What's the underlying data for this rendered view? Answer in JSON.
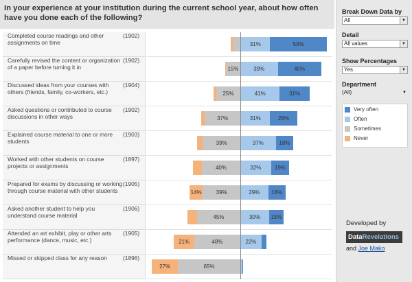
{
  "header": {
    "title": "In your experience at your institution during the current school year, about how often have you done each of the following?"
  },
  "panel": {
    "breakdown": {
      "label": "Break Down Data by",
      "value": "All"
    },
    "detail": {
      "label": "Detail",
      "value": "All values"
    },
    "show_pct": {
      "label": "Show Percentages",
      "value": "Yes"
    },
    "department": {
      "label": "Department",
      "value": "(All)"
    },
    "legend": [
      {
        "label": "Very often",
        "color": "#4f87c7"
      },
      {
        "label": "Often",
        "color": "#a6c8ea"
      },
      {
        "label": "Sometimes",
        "color": "#c6c6c6"
      },
      {
        "label": "Never",
        "color": "#f5b27a"
      }
    ],
    "credit": {
      "line1": "Developed by",
      "logo_a": "Data",
      "logo_b": "Revelations",
      "and": "and ",
      "link": "Joe Mako"
    }
  },
  "chart_data": {
    "type": "bar",
    "title": "In your experience at your institution during the current school year, about how often have you done each of the following?",
    "diverging": true,
    "series": [
      {
        "name": "Very often",
        "values": [
          59,
          45,
          31,
          28,
          18,
          19,
          18,
          15,
          5,
          1
        ]
      },
      {
        "name": "Often",
        "values": [
          31,
          39,
          41,
          31,
          37,
          32,
          29,
          30,
          22,
          2
        ]
      },
      {
        "name": "Sometimes",
        "values": [
          8,
          15,
          25,
          37,
          39,
          40,
          39,
          45,
          48,
          65
        ]
      },
      {
        "name": "Never",
        "values": [
          2,
          1,
          3,
          4,
          6,
          9,
          14,
          10,
          21,
          27
        ]
      }
    ],
    "categories": [
      {
        "label": "Completed course readings and other assignments on time",
        "n": "(1902)"
      },
      {
        "label": "Carefully revised the content or organization of a paper before turning it in",
        "n": "(1902)"
      },
      {
        "label": "Discussed ideas from your courses with others (friends, family, co-workers, etc.)",
        "n": "(1904)"
      },
      {
        "label": "Asked questions or contributed to course discussions in other ways",
        "n": "(1902)"
      },
      {
        "label": "Explained course material to one or more students",
        "n": "(1903)"
      },
      {
        "label": "Worked with other students on course projects or assignments",
        "n": "(1897)"
      },
      {
        "label": "Prepared for exams by discussing or working through course material with other students",
        "n": "(1905)"
      },
      {
        "label": "Asked another student to help you understand course material",
        "n": "(1906)"
      },
      {
        "label": "Attended an art exhibit, play or other arts performance (dance, music, etc.)",
        "n": "(1905)"
      },
      {
        "label": "Missed or skipped class for any reason",
        "n": "(1896)"
      }
    ],
    "labels": [
      [
        "59%",
        "31%",
        "",
        ""
      ],
      [
        "45%",
        "39%",
        "15%",
        ""
      ],
      [
        "31%",
        "41%",
        "25%",
        ""
      ],
      [
        "28%",
        "31%",
        "37%",
        ""
      ],
      [
        "18%",
        "37%",
        "39%",
        ""
      ],
      [
        "19%",
        "32%",
        "40%",
        ""
      ],
      [
        "18%",
        "29%",
        "39%",
        "14%"
      ],
      [
        "15%",
        "30%",
        "45%",
        ""
      ],
      [
        "",
        "22%",
        "48%",
        "21%"
      ],
      [
        "",
        "",
        "65%",
        "27%"
      ]
    ]
  }
}
